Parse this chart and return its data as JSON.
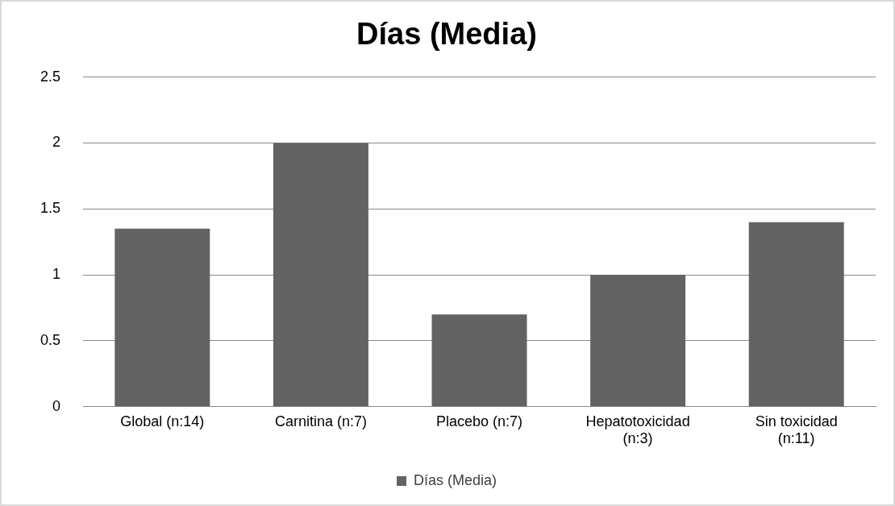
{
  "chart_data": {
    "type": "bar",
    "title": "Días (Media)",
    "categories": [
      "Global (n:14)",
      "Carnitina (n:7)",
      "Placebo (n:7)",
      "Hepatotoxicidad (n:3)",
      "Sin toxicidad (n:11)"
    ],
    "series": [
      {
        "name": "Días (Media)",
        "color": "#636363",
        "values": [
          1.35,
          2,
          0.7,
          1,
          1.4
        ]
      }
    ],
    "ylim": [
      0,
      2.5
    ],
    "yticks": [
      0,
      0.5,
      1,
      1.5,
      2,
      2.5
    ],
    "grid": "y",
    "legend": "bottom"
  }
}
